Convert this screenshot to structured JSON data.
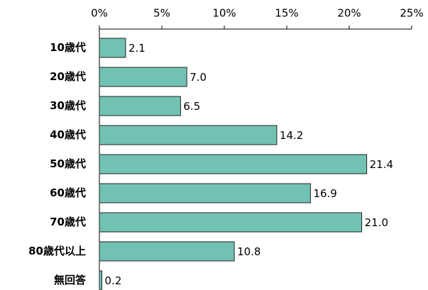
{
  "chart_data": {
    "type": "bar",
    "orientation": "horizontal",
    "categories": [
      "10歳代",
      "20歳代",
      "30歳代",
      "40歳代",
      "50歳代",
      "60歳代",
      "70歳代",
      "80歳代以上",
      "無回答"
    ],
    "values": [
      2.1,
      7.0,
      6.5,
      14.2,
      21.4,
      16.9,
      21.0,
      10.8,
      0.2
    ],
    "value_labels": [
      "2.1",
      "7.0",
      "6.5",
      "14.2",
      "21.4",
      "16.9",
      "21.0",
      "10.8",
      "0.2"
    ],
    "color": "#72c2b4",
    "xlim": [
      0,
      25
    ],
    "xticks": [
      {
        "value": 0,
        "label": "0%"
      },
      {
        "value": 5,
        "label": "5%"
      },
      {
        "value": 10,
        "label": "10%"
      },
      {
        "value": 15,
        "label": "15%"
      },
      {
        "value": 20,
        "label": "20%"
      },
      {
        "value": 25,
        "label": "25%"
      }
    ],
    "grid": false
  }
}
